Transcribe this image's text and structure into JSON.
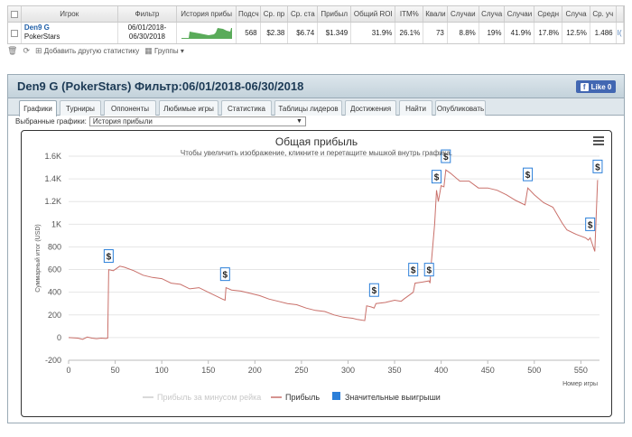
{
  "stats_table": {
    "headers": [
      "Игрок",
      "Фильтр",
      "История прибы",
      "Подсч",
      "Ср. пр",
      "Ср. ста",
      "Прибыл",
      "Общий ROI",
      "ITM%",
      "Квали",
      "Случаи",
      "Случа",
      "Случаи",
      "Средн",
      "Случа",
      "Ср. уч"
    ],
    "row": {
      "player": "Den9 G",
      "site": "PokerStars",
      "filter_from": "06/01/2018-",
      "filter_to": "06/30/2018",
      "count": "568",
      "avg_profit": "$2.38",
      "avg_stake": "$6.74",
      "profit": "$1.349",
      "roi": "31.9%",
      "itm": "26.1%",
      "quali": "73",
      "c1": "8.8%",
      "c2": "19%",
      "c3": "41.9%",
      "avg2": "17.8%",
      "c4": "12.5%",
      "avg_part": "1.486",
      "extra": "I("
    },
    "sparkline_color": "#5aab5a"
  },
  "toolbar": {
    "add_stats": "Добавить другую статистику",
    "groups": "Группы"
  },
  "panel": {
    "title": "Den9 G (PokerStars) Фильтр:06/01/2018-06/30/2018",
    "like_label": "Like 0",
    "tabs": [
      "Графики",
      "Турниры",
      "Оппоненты",
      "Любимые игры",
      "Статистика",
      "Таблицы лидеров",
      "Достижения",
      "Найти",
      "Опубликовать"
    ],
    "active_tab": 0,
    "select_label": "Выбранные графики:",
    "select_value": "История прибыли"
  },
  "chart_data": {
    "type": "line",
    "title": "Общая прибыль",
    "subtitle": "Чтобы увеличить изображение, кликните и перетащите мышкой внутрь графика.",
    "ylabel": "Суммарный итог (USD)",
    "xlabel": "Номер игры",
    "xlim": [
      0,
      570
    ],
    "ylim": [
      -200,
      1600
    ],
    "x_ticks": [
      0,
      50,
      100,
      150,
      200,
      250,
      300,
      350,
      400,
      450,
      500,
      550
    ],
    "y_ticks": [
      {
        "v": -200,
        "l": "-200"
      },
      {
        "v": 0,
        "l": "0"
      },
      {
        "v": 200,
        "l": "200"
      },
      {
        "v": 400,
        "l": "400"
      },
      {
        "v": 600,
        "l": "600"
      },
      {
        "v": 800,
        "l": "800"
      },
      {
        "v": 1000,
        "l": "1K"
      },
      {
        "v": 1200,
        "l": "1.2K"
      },
      {
        "v": 1400,
        "l": "1.4K"
      },
      {
        "v": 1600,
        "l": "1.6K"
      }
    ],
    "grid": true,
    "legend_position": "bottom",
    "series": [
      {
        "name": "Прибыль",
        "color": "#c9706a",
        "points": [
          [
            0,
            0
          ],
          [
            10,
            -5
          ],
          [
            15,
            -15
          ],
          [
            20,
            5
          ],
          [
            25,
            -5
          ],
          [
            30,
            -10
          ],
          [
            35,
            -5
          ],
          [
            40,
            -8
          ],
          [
            42,
            -5
          ],
          [
            43,
            600
          ],
          [
            48,
            590
          ],
          [
            55,
            630
          ],
          [
            60,
            620
          ],
          [
            70,
            590
          ],
          [
            80,
            550
          ],
          [
            90,
            530
          ],
          [
            100,
            520
          ],
          [
            110,
            480
          ],
          [
            120,
            470
          ],
          [
            130,
            430
          ],
          [
            140,
            440
          ],
          [
            150,
            400
          ],
          [
            160,
            360
          ],
          [
            165,
            340
          ],
          [
            168,
            330
          ],
          [
            169,
            440
          ],
          [
            175,
            420
          ],
          [
            185,
            410
          ],
          [
            195,
            390
          ],
          [
            205,
            370
          ],
          [
            215,
            340
          ],
          [
            225,
            320
          ],
          [
            235,
            300
          ],
          [
            245,
            290
          ],
          [
            255,
            260
          ],
          [
            265,
            240
          ],
          [
            275,
            230
          ],
          [
            285,
            200
          ],
          [
            295,
            180
          ],
          [
            305,
            170
          ],
          [
            310,
            160
          ],
          [
            318,
            150
          ],
          [
            320,
            280
          ],
          [
            325,
            270
          ],
          [
            328,
            260
          ],
          [
            330,
            300
          ],
          [
            340,
            310
          ],
          [
            350,
            330
          ],
          [
            357,
            320
          ],
          [
            360,
            340
          ],
          [
            370,
            400
          ],
          [
            372,
            480
          ],
          [
            380,
            490
          ],
          [
            387,
            500
          ],
          [
            388,
            480
          ],
          [
            389,
            620
          ],
          [
            393,
            1000
          ],
          [
            395,
            1300
          ],
          [
            397,
            1200
          ],
          [
            400,
            1340
          ],
          [
            403,
            1330
          ],
          [
            405,
            1480
          ],
          [
            410,
            1450
          ],
          [
            420,
            1380
          ],
          [
            430,
            1380
          ],
          [
            440,
            1320
          ],
          [
            450,
            1320
          ],
          [
            460,
            1300
          ],
          [
            470,
            1260
          ],
          [
            480,
            1210
          ],
          [
            490,
            1170
          ],
          [
            493,
            1320
          ],
          [
            500,
            1260
          ],
          [
            510,
            1190
          ],
          [
            520,
            1150
          ],
          [
            530,
            1010
          ],
          [
            535,
            950
          ],
          [
            545,
            910
          ],
          [
            555,
            880
          ],
          [
            558,
            860
          ],
          [
            560,
            880
          ],
          [
            565,
            760
          ],
          [
            568,
            1390
          ]
        ]
      }
    ],
    "big_wins": [
      {
        "x": 43,
        "y": 600
      },
      {
        "x": 168,
        "y": 440
      },
      {
        "x": 328,
        "y": 300
      },
      {
        "x": 370,
        "y": 480
      },
      {
        "x": 387,
        "y": 480
      },
      {
        "x": 395,
        "y": 1300
      },
      {
        "x": 405,
        "y": 1480
      },
      {
        "x": 493,
        "y": 1320
      },
      {
        "x": 560,
        "y": 880
      },
      {
        "x": 568,
        "y": 1390
      }
    ],
    "big_win_marker": "$",
    "legend": [
      {
        "label": "Прибыль за минусом рейка",
        "color": "#cccccc",
        "shape": "line",
        "muted": true
      },
      {
        "label": "Прибыль",
        "color": "#c9706a",
        "shape": "line",
        "muted": false
      },
      {
        "label": "Значительные выигрыши",
        "color": "#2b7fd9",
        "shape": "square",
        "muted": false
      }
    ]
  }
}
